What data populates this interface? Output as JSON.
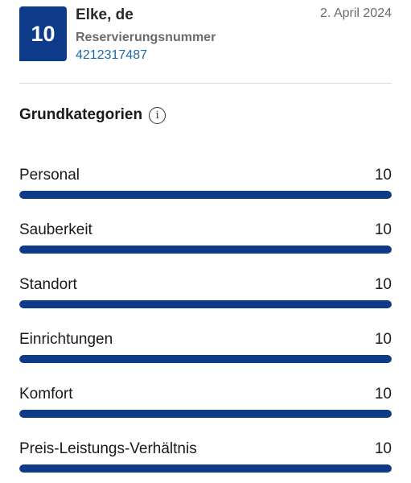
{
  "review": {
    "score": "10",
    "reviewer": "Elke, de",
    "reservation_label": "Reservierungsnummer",
    "reservation_number": "4212317487",
    "date": "2. April 2024"
  },
  "section": {
    "title": "Grundkategorien",
    "info_icon": "info-icon"
  },
  "colors": {
    "accent": "#0d3b8a",
    "link": "#1b6aa6"
  },
  "categories": [
    {
      "label": "Personal",
      "score": "10",
      "fraction": 1.0
    },
    {
      "label": "Sauberkeit",
      "score": "10",
      "fraction": 1.0
    },
    {
      "label": "Standort",
      "score": "10",
      "fraction": 1.0
    },
    {
      "label": "Einrichtungen",
      "score": "10",
      "fraction": 1.0
    },
    {
      "label": "Komfort",
      "score": "10",
      "fraction": 1.0
    },
    {
      "label": "Preis-Leistungs-Verhältnis",
      "score": "10",
      "fraction": 1.0
    }
  ]
}
